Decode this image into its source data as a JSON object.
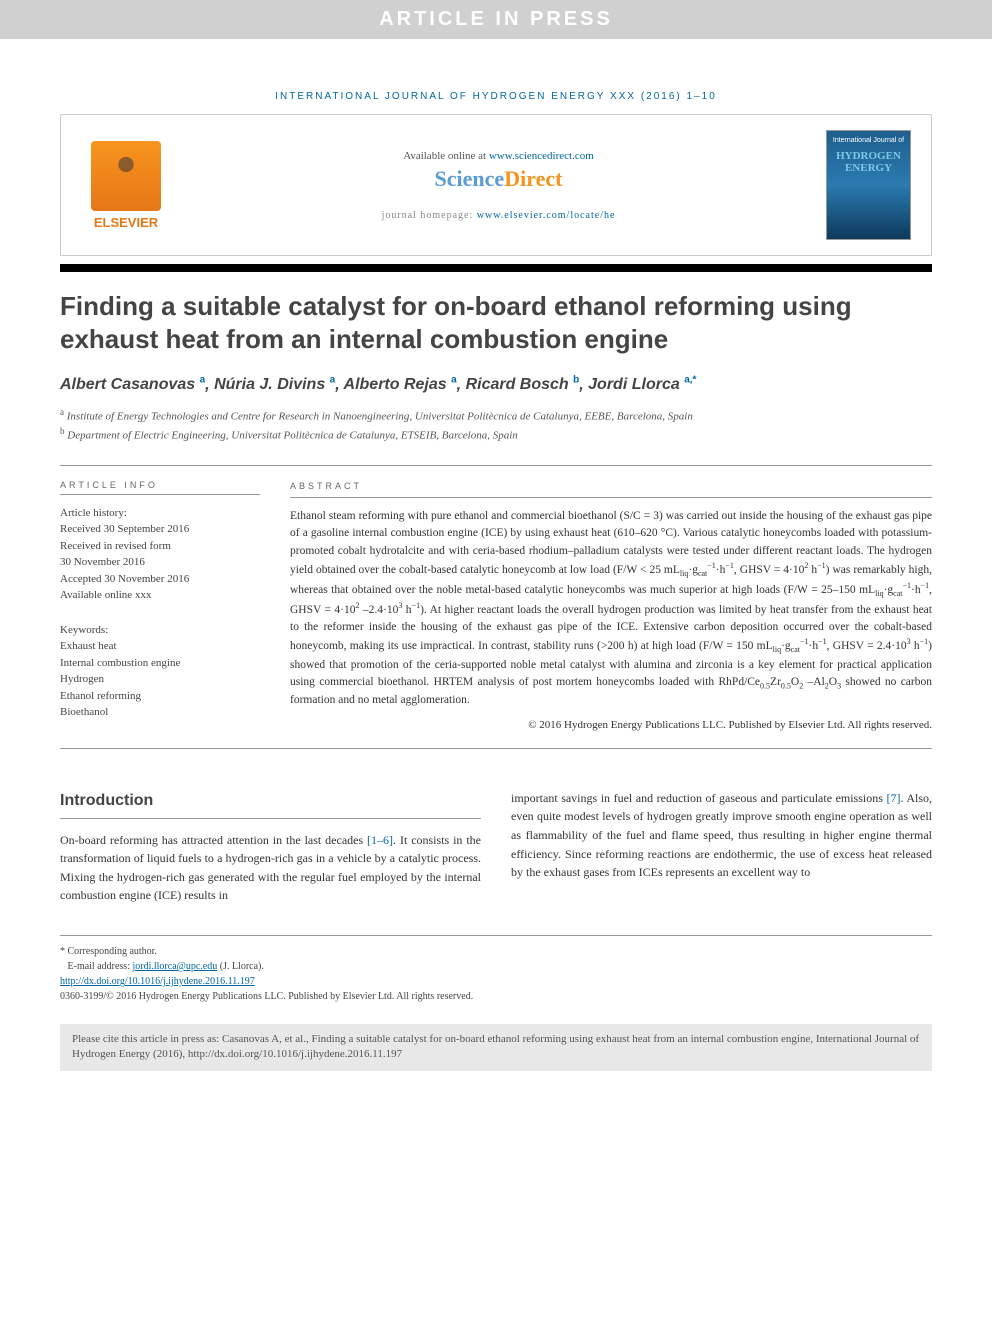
{
  "press_banner": "ARTICLE IN PRESS",
  "journal_ref": "INTERNATIONAL JOURNAL OF HYDROGEN ENERGY XXX (2016) 1–10",
  "header": {
    "available_text": "Available online at ",
    "available_link": "www.sciencedirect.com",
    "sd_science": "Science",
    "sd_direct": "Direct",
    "homepage_label": "journal homepage: ",
    "homepage_link": "www.elsevier.com/locate/he",
    "elsevier": "ELSEVIER",
    "cover_top": "International Journal of",
    "cover_main1": "HYDROGEN",
    "cover_main2": "ENERGY"
  },
  "title": "Finding a suitable catalyst for on-board ethanol reforming using exhaust heat from an internal combustion engine",
  "authors": [
    {
      "name": "Albert Casanovas",
      "sup": "a"
    },
    {
      "name": "Núria J. Divins",
      "sup": "a"
    },
    {
      "name": "Alberto Rejas",
      "sup": "a"
    },
    {
      "name": "Ricard Bosch",
      "sup": "b"
    },
    {
      "name": "Jordi Llorca",
      "sup": "a,*"
    }
  ],
  "affiliations": [
    {
      "sup": "a",
      "text": "Institute of Energy Technologies and Centre for Research in Nanoengineering, Universitat Politècnica de Catalunya, EEBE, Barcelona, Spain"
    },
    {
      "sup": "b",
      "text": "Department of Electric Engineering, Universitat Politècnica de Catalunya, ETSEIB, Barcelona, Spain"
    }
  ],
  "info_heading": "ARTICLE INFO",
  "abstract_heading": "ABSTRACT",
  "history_label": "Article history:",
  "history": [
    "Received 30 September 2016",
    "Received in revised form",
    "30 November 2016",
    "Accepted 30 November 2016",
    "Available online xxx"
  ],
  "keywords_label": "Keywords:",
  "keywords": [
    "Exhaust heat",
    "Internal combustion engine",
    "Hydrogen",
    "Ethanol reforming",
    "Bioethanol"
  ],
  "abstract": "Ethanol steam reforming with pure ethanol and commercial bioethanol (S/C = 3) was carried out inside the housing of the exhaust gas pipe of a gasoline internal combustion engine (ICE) by using exhaust heat (610–620 °C). Various catalytic honeycombs loaded with potassium-promoted cobalt hydrotalcite and with ceria-based rhodium–palladium catalysts were tested under different reactant loads. The hydrogen yield obtained over the cobalt-based catalytic honeycomb at low load (F/W < 25 mL_liq·g_cat^−1·h^−1, GHSV = 4·10^2 h^−1) was remarkably high, whereas that obtained over the noble metal-based catalytic honeycombs was much superior at high loads (F/W = 25–150 mL_liq·g_cat^−1·h^−1, GHSV = 4·10^2 –2.4·10^3 h^−1). At higher reactant loads the overall hydrogen production was limited by heat transfer from the exhaust heat to the reformer inside the housing of the exhaust gas pipe of the ICE. Extensive carbon deposition occurred over the cobalt-based honeycomb, making its use impractical. In contrast, stability runs (>200 h) at high load (F/W = 150 mL_liq·g_cat^−1·h^−1, GHSV = 2.4·10^3 h^−1) showed that promotion of the ceria-supported noble metal catalyst with alumina and zirconia is a key element for practical application using commercial bioethanol. HRTEM analysis of post mortem honeycombs loaded with RhPd/Ce_0.5Zr_0.5O_2 –Al_2O_3 showed no carbon formation and no metal agglomeration.",
  "copyright": "© 2016 Hydrogen Energy Publications LLC. Published by Elsevier Ltd. All rights reserved.",
  "intro_heading": "Introduction",
  "intro_col1": "On-board reforming has attracted attention in the last decades [1–6]. It consists in the transformation of liquid fuels to a hydrogen-rich gas in a vehicle by a catalytic process. Mixing the hydrogen-rich gas generated with the regular fuel employed by the internal combustion engine (ICE) results in",
  "intro_col2": "important savings in fuel and reduction of gaseous and particulate emissions [7]. Also, even quite modest levels of hydrogen greatly improve smooth engine operation as well as flammability of the fuel and flame speed, thus resulting in higher engine thermal efficiency. Since reforming reactions are endothermic, the use of excess heat released by the exhaust gases from ICEs represents an excellent way to",
  "footer": {
    "corresp": "* Corresponding author.",
    "email_label": "E-mail address: ",
    "email": "jordi.llorca@upc.edu",
    "email_author": " (J. Llorca).",
    "doi": "http://dx.doi.org/10.1016/j.ijhydene.2016.11.197",
    "issn_copy": "0360-3199/© 2016 Hydrogen Energy Publications LLC. Published by Elsevier Ltd. All rights reserved."
  },
  "cite_box": "Please cite this article in press as: Casanovas A, et al., Finding a suitable catalyst for on-board ethanol reforming using exhaust heat from an internal combustion engine, International Journal of Hydrogen Energy (2016), http://dx.doi.org/10.1016/j.ijhydene.2016.11.197",
  "colors": {
    "banner_bg": "#d0d0d0",
    "link": "#0066a1",
    "orange": "#f7941e",
    "sd_blue": "#5b9bd5"
  }
}
